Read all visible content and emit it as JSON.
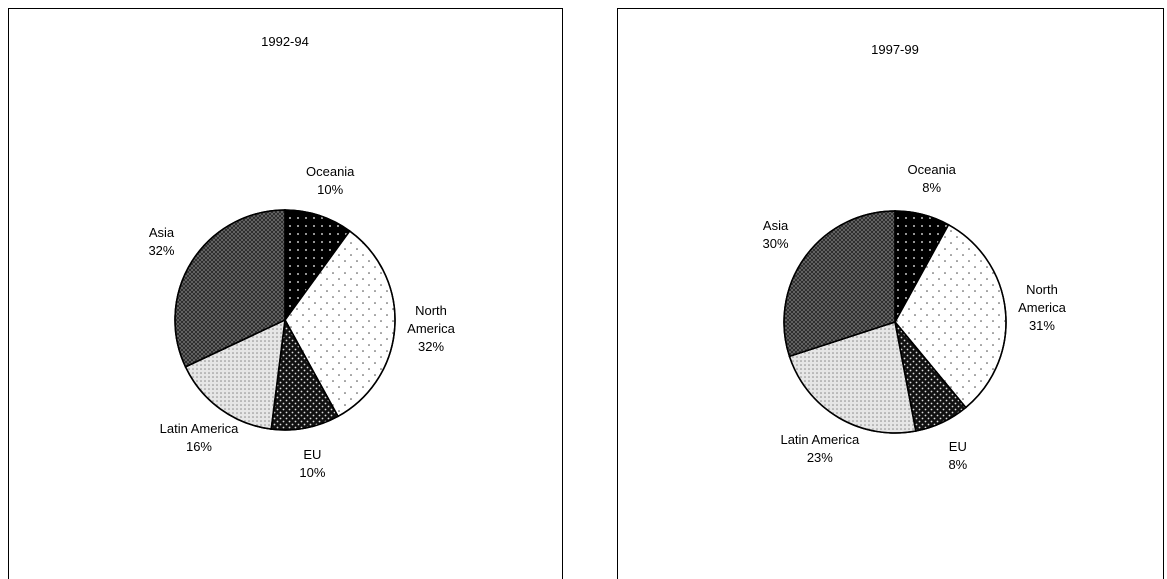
{
  "chart_data": [
    {
      "type": "pie",
      "title": "1992-94",
      "categories": [
        "Oceania",
        "North America",
        "EU",
        "Latin America",
        "Asia"
      ],
      "values": [
        10,
        32,
        10,
        16,
        32
      ],
      "value_labels": [
        "10%",
        "32%",
        "10%",
        "16%",
        "32%"
      ],
      "colors": [
        "#000000",
        "#ffffff",
        "#111111",
        "#e6e6e6",
        "#6e6e6e"
      ]
    },
    {
      "type": "pie",
      "title": "1997-99",
      "categories": [
        "Oceania",
        "North America",
        "EU",
        "Latin America",
        "Asia"
      ],
      "values": [
        8,
        31,
        8,
        23,
        30
      ],
      "value_labels": [
        "8%",
        "31%",
        "8%",
        "23%",
        "30%"
      ],
      "colors": [
        "#000000",
        "#ffffff",
        "#111111",
        "#e6e6e6",
        "#6e6e6e"
      ]
    }
  ]
}
